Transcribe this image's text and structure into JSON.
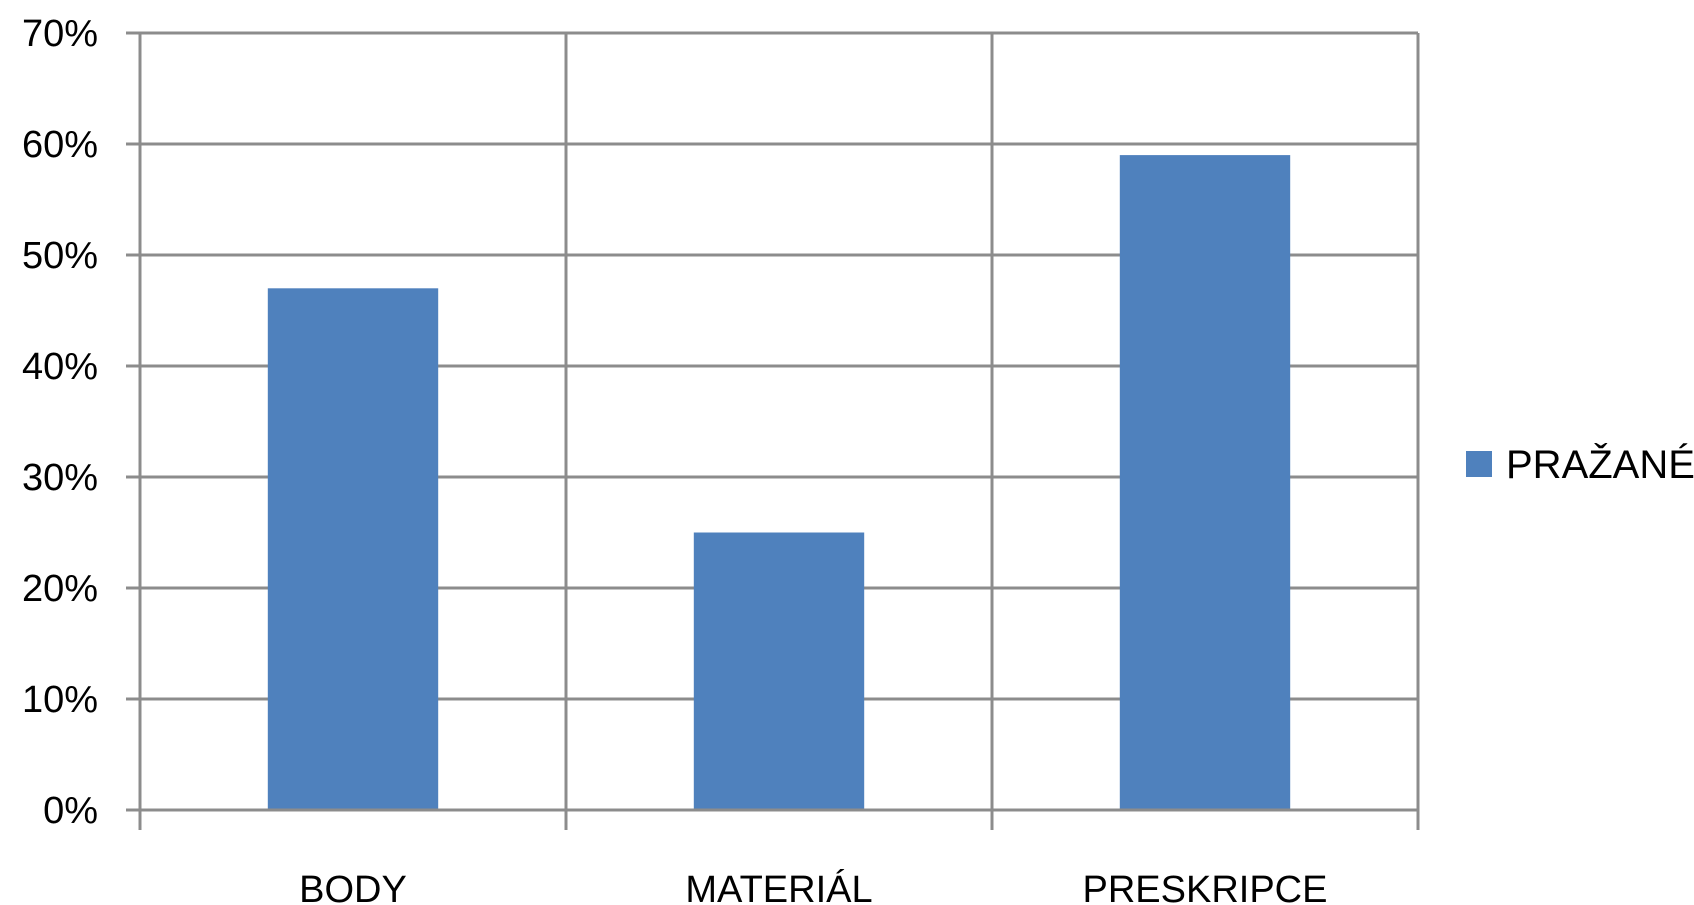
{
  "chart_data": {
    "type": "bar",
    "title": "",
    "xlabel": "",
    "ylabel": "",
    "categories": [
      "BODY",
      "MATERIÁL",
      "PRESKRIPCE"
    ],
    "series": [
      {
        "name": "PRAŽANÉ",
        "values": [
          47,
          25,
          59
        ],
        "color": "#4F81BD"
      }
    ],
    "ylim": [
      0,
      70
    ],
    "y_ticks": [
      0,
      10,
      20,
      30,
      40,
      50,
      60,
      70
    ],
    "y_tick_format": "percent",
    "y_tick_labels": [
      "0%",
      "10%",
      "20%",
      "30%",
      "40%",
      "50%",
      "60%",
      "70%"
    ],
    "grid": true,
    "legend_position": "right"
  }
}
